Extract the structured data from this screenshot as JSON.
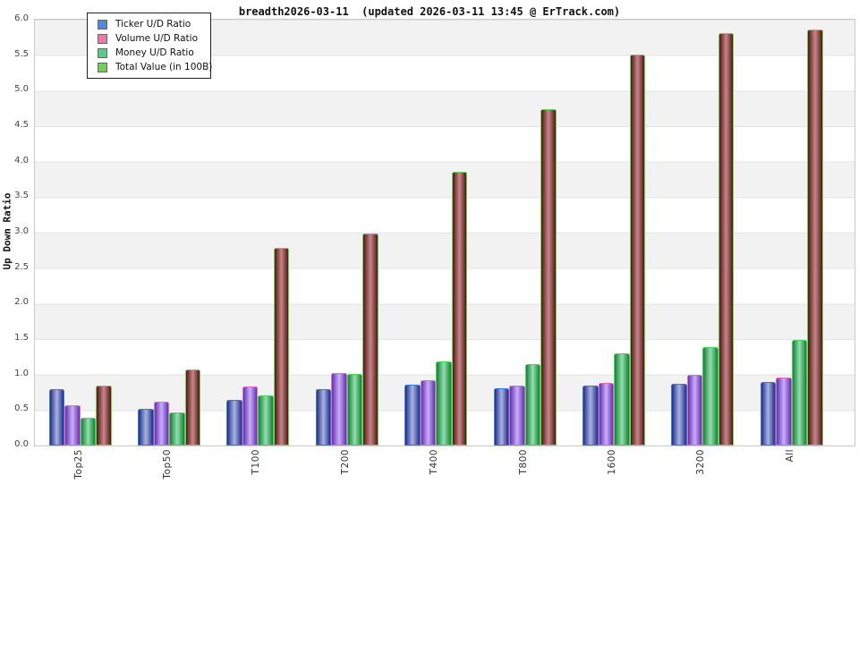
{
  "title": "breadth2026-03-11  (updated 2026-03-11 13:45 @ ErTrack.com)",
  "chart_data": {
    "type": "bar",
    "title": "breadth2026-03-11  (updated 2026-03-11 13:45 @ ErTrack.com)",
    "xlabel": "",
    "ylabel": "Up Down Ratio",
    "ylim": [
      0.0,
      6.0
    ],
    "ytick_step": 0.5,
    "ytick_labels": [
      "0.0",
      "0.5",
      "1.0",
      "1.5",
      "2.0",
      "2.5",
      "3.0",
      "3.5",
      "4.0",
      "4.5",
      "5.0",
      "5.5",
      "6.0"
    ],
    "grid": "alternating horizontal bands every 0.5, light gray / white",
    "legend_position": "upper left",
    "categories": [
      "Top25",
      "Top50",
      "T100",
      "T200",
      "T400",
      "T800",
      "1600",
      "3200",
      "All"
    ],
    "series": [
      {
        "name": "Ticker U/D Ratio",
        "legend_color": "#5588DD",
        "bar_edge": "#3A78E0",
        "bar_dark": "#232F80",
        "bar_light": "#A3AEE3",
        "values": [
          0.78,
          0.51,
          0.63,
          0.78,
          0.84,
          0.79,
          0.83,
          0.86,
          0.88
        ]
      },
      {
        "name": "Volume U/D Ratio",
        "legend_color": "#EE77AA",
        "bar_edge": "#EE66BE",
        "bar_dark": "#5C35AD",
        "bar_light": "#C9A8F8",
        "values": [
          0.55,
          0.61,
          0.82,
          1.01,
          0.91,
          0.83,
          0.87,
          0.98,
          0.95
        ]
      },
      {
        "name": "Money U/D Ratio",
        "legend_color": "#55CC88",
        "bar_edge": "#3ED95A",
        "bar_dark": "#1E7A3C",
        "bar_light": "#8ADFA8",
        "values": [
          0.38,
          0.45,
          0.69,
          1.0,
          1.17,
          1.14,
          1.28,
          1.37,
          1.48
        ]
      },
      {
        "name": "Total Value (in 100B)",
        "legend_color": "#77CC55",
        "bar_edge": "#66D94E",
        "bar_dark": "#501616",
        "bar_light": "#C28383",
        "values": [
          0.83,
          1.06,
          2.77,
          2.98,
          3.85,
          4.73,
          5.5,
          5.8,
          5.85
        ]
      }
    ]
  }
}
